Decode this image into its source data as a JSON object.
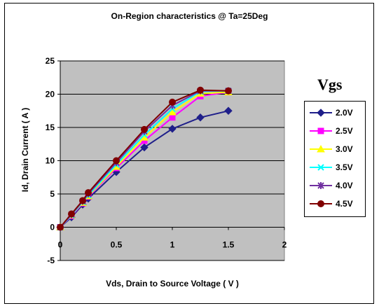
{
  "chart_data": {
    "type": "line",
    "title": "On-Region characteristics @ Ta=25Deg",
    "xlabel": "Vds, Drain to Source Voltage ( V )",
    "ylabel": "Id, Drain Current ( A )",
    "xlim": [
      0,
      2
    ],
    "ylim": [
      -5,
      25
    ],
    "xticks": [
      0,
      0.5,
      1,
      1.5,
      2
    ],
    "xtick_labels": [
      "0",
      "0.5",
      "1",
      "1.5",
      "2"
    ],
    "yticks": [
      -5,
      0,
      5,
      10,
      15,
      20,
      25
    ],
    "ytick_labels": [
      "-5",
      "0",
      "5",
      "10",
      "15",
      "20",
      "25"
    ],
    "grid": "horizontal",
    "legend_title": "Vgs",
    "legend_position": "right",
    "x": [
      0,
      0.1,
      0.2,
      0.25,
      0.5,
      0.75,
      1.0,
      1.25,
      1.5
    ],
    "series": [
      {
        "name": "2.0V",
        "color": "#1f1f8a",
        "marker": "diamond",
        "values": [
          0,
          1.5,
          3.4,
          4.3,
          8.3,
          12.0,
          14.8,
          16.5,
          17.5
        ]
      },
      {
        "name": "2.5V",
        "color": "#ff00ff",
        "marker": "square",
        "values": [
          0,
          1.7,
          3.6,
          4.6,
          8.9,
          13.0,
          16.5,
          19.7,
          20.3
        ]
      },
      {
        "name": "3.0V",
        "color": "#ffff00",
        "marker": "triangle",
        "values": [
          0,
          1.8,
          3.7,
          4.7,
          9.1,
          13.5,
          17.3,
          20.1,
          20.3
        ]
      },
      {
        "name": "3.5V",
        "color": "#00ffff",
        "marker": "x",
        "values": [
          0,
          1.8,
          3.8,
          4.8,
          9.4,
          13.9,
          17.8,
          20.4,
          20.5
        ]
      },
      {
        "name": "4.0V",
        "color": "#7030a0",
        "marker": "star",
        "values": [
          0,
          1.9,
          3.9,
          5.0,
          9.7,
          14.4,
          18.3,
          20.5,
          20.5
        ]
      },
      {
        "name": "4.5V",
        "color": "#800000",
        "marker": "circle",
        "values": [
          0,
          2.0,
          4.0,
          5.2,
          10.0,
          14.7,
          18.8,
          20.6,
          20.5
        ]
      }
    ]
  }
}
